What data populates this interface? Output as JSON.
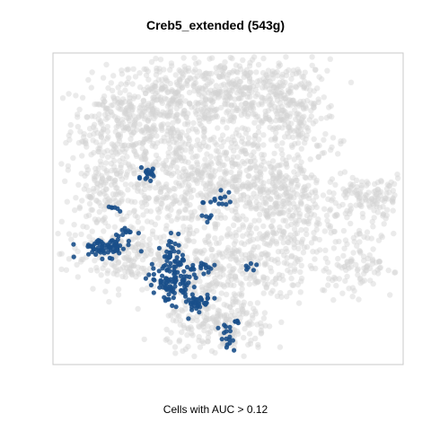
{
  "chart_data": {
    "type": "scatter",
    "title": "Creb5_extended (543g)",
    "caption": "Cells with AUC > 0.12",
    "xlabel": "",
    "ylabel": "",
    "xlim": [
      -40,
      40
    ],
    "ylim": [
      -40,
      40
    ],
    "grid": false,
    "legend": "none",
    "series": [
      {
        "color": "#d3d3d3",
        "opacity": 0.45,
        "clusters": [
          {
            "cx": -24,
            "cy": 22,
            "sx": 6,
            "sy": 6,
            "n": 260
          },
          {
            "cx": -12,
            "cy": 27,
            "sx": 7,
            "sy": 6,
            "n": 300
          },
          {
            "cx": 2,
            "cy": 30,
            "sx": 7,
            "sy": 5,
            "n": 280
          },
          {
            "cx": 15,
            "cy": 24,
            "sx": 5,
            "sy": 7,
            "n": 240
          },
          {
            "cx": -26,
            "cy": 4,
            "sx": 6,
            "sy": 6,
            "n": 200
          },
          {
            "cx": -10,
            "cy": 8,
            "sx": 8,
            "sy": 7,
            "n": 320
          },
          {
            "cx": 6,
            "cy": 6,
            "sx": 8,
            "sy": 8,
            "n": 340
          },
          {
            "cx": 14,
            "cy": -2,
            "sx": 5,
            "sy": 6,
            "n": 180
          },
          {
            "cx": -26,
            "cy": -12,
            "sx": 6,
            "sy": 4,
            "n": 150
          },
          {
            "cx": -10,
            "cy": -14,
            "sx": 7,
            "sy": 6,
            "n": 200
          },
          {
            "cx": 5,
            "cy": -15,
            "sx": 7,
            "sy": 5,
            "n": 200
          },
          {
            "cx": -2,
            "cy": -30,
            "sx": 6,
            "sy": 4,
            "n": 220
          },
          {
            "cx": 32,
            "cy": 3,
            "sx": 5,
            "sy": 3,
            "n": 130
          },
          {
            "cx": 30,
            "cy": -14,
            "sx": 4,
            "sy": 4,
            "n": 110
          }
        ]
      },
      {
        "color": "#1a4f8a",
        "opacity": 0.9,
        "clusters": [
          {
            "cx": -28,
            "cy": -10,
            "sx": 3,
            "sy": 1.2,
            "n": 70
          },
          {
            "cx": -13,
            "cy": -19,
            "sx": 2.5,
            "sy": 2.5,
            "n": 90
          },
          {
            "cx": -12,
            "cy": -12,
            "sx": 1.5,
            "sy": 2.5,
            "n": 40
          },
          {
            "cx": -18,
            "cy": 9,
            "sx": 0.8,
            "sy": 1,
            "n": 18
          },
          {
            "cx": -8,
            "cy": -24,
            "sx": 2.5,
            "sy": 1.5,
            "n": 40
          },
          {
            "cx": -6,
            "cy": -15,
            "sx": 1.5,
            "sy": 0.7,
            "n": 15
          },
          {
            "cx": -23,
            "cy": -6,
            "sx": 1,
            "sy": 1,
            "n": 10
          },
          {
            "cx": -2,
            "cy": 2,
            "sx": 2,
            "sy": 1,
            "n": 14
          },
          {
            "cx": -5,
            "cy": -2,
            "sx": 0.6,
            "sy": 0.6,
            "n": 6
          },
          {
            "cx": 5,
            "cy": -15,
            "sx": 0.8,
            "sy": 0.6,
            "n": 6
          },
          {
            "cx": 0,
            "cy": -33,
            "sx": 1,
            "sy": 2,
            "n": 16
          },
          {
            "cx": 2,
            "cy": -29,
            "sx": 0.5,
            "sy": 0.5,
            "n": 5
          },
          {
            "cx": -26,
            "cy": 0,
            "sx": 1,
            "sy": 0.6,
            "n": 6
          }
        ]
      }
    ]
  }
}
